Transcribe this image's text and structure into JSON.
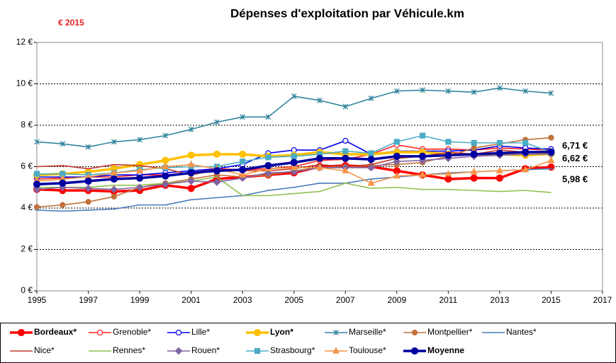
{
  "chart_data": {
    "type": "line",
    "title": "Dépenses d'exploitation par Véhicule.km",
    "subtitle": "€ 2015",
    "x": [
      1995,
      1996,
      1997,
      1998,
      1999,
      2000,
      2001,
      2002,
      2003,
      2004,
      2005,
      2006,
      2007,
      2008,
      2009,
      2010,
      2011,
      2012,
      2013,
      2014,
      2015
    ],
    "xlim": [
      1995,
      2017
    ],
    "xticks": [
      1995,
      1997,
      1999,
      2001,
      2003,
      2005,
      2007,
      2009,
      2011,
      2013,
      2015,
      2017
    ],
    "ylim": [
      0,
      12
    ],
    "yticks": [
      {
        "value": 0,
        "label": "0 €"
      },
      {
        "value": 2,
        "label": "2 €"
      },
      {
        "value": 4,
        "label": "4 €"
      },
      {
        "value": 6,
        "label": "6 €"
      },
      {
        "value": 8,
        "label": "8 €"
      },
      {
        "value": 10,
        "label": "10 €"
      },
      {
        "value": 12,
        "label": "12 €"
      }
    ],
    "grid": true,
    "series": [
      {
        "name": "Bordeaux*",
        "color": "#ff0000",
        "marker": "circle",
        "emphasis": true,
        "values": [
          4.9,
          4.85,
          4.85,
          4.8,
          4.85,
          5.1,
          4.95,
          5.4,
          5.5,
          5.6,
          5.7,
          6.0,
          6.05,
          6.0,
          5.8,
          5.6,
          5.4,
          5.45,
          5.45,
          5.9,
          5.98
        ]
      },
      {
        "name": "Grenoble*",
        "color": "#ff2020",
        "marker": "open-circle",
        "emphasis": false,
        "values": [
          5.4,
          5.45,
          5.5,
          5.5,
          5.6,
          5.6,
          5.7,
          5.9,
          5.85,
          5.9,
          6.0,
          6.3,
          6.35,
          6.6,
          7.05,
          6.85,
          6.85,
          6.8,
          6.9,
          6.85,
          6.8
        ]
      },
      {
        "name": "Lille*",
        "color": "#0000ee",
        "marker": "open-circle",
        "emphasis": false,
        "values": [
          5.5,
          5.5,
          5.5,
          5.6,
          5.6,
          5.7,
          5.8,
          5.9,
          6.1,
          6.65,
          6.8,
          6.8,
          7.25,
          6.6,
          6.75,
          6.75,
          6.75,
          6.8,
          7.0,
          6.9,
          6.85
        ]
      },
      {
        "name": "Lyon*",
        "color": "#ffc000",
        "marker": "circle",
        "emphasis": true,
        "values": [
          5.6,
          5.65,
          5.75,
          5.9,
          6.1,
          6.3,
          6.55,
          6.6,
          6.6,
          6.5,
          6.55,
          6.7,
          6.6,
          6.6,
          6.7,
          6.7,
          6.6,
          6.6,
          6.6,
          6.55,
          6.62
        ]
      },
      {
        "name": "Marseille*",
        "color": "#31859c",
        "marker": "star",
        "emphasis": false,
        "values": [
          7.2,
          7.1,
          6.95,
          7.2,
          7.3,
          7.5,
          7.8,
          8.15,
          8.4,
          8.4,
          9.4,
          9.2,
          8.9,
          9.3,
          9.65,
          9.7,
          9.65,
          9.6,
          9.8,
          9.65,
          9.55
        ]
      },
      {
        "name": "Montpellier*",
        "color": "#c0703a",
        "marker": "circle",
        "emphasis": false,
        "values": [
          4.05,
          4.15,
          4.3,
          4.55,
          5.0,
          5.2,
          5.4,
          5.6,
          5.5,
          5.6,
          5.8,
          5.95,
          6.0,
          6.05,
          6.1,
          6.2,
          6.5,
          6.9,
          7.1,
          7.3,
          7.4
        ]
      },
      {
        "name": "Nantes*",
        "color": "#4a7ebb",
        "marker": "dash",
        "emphasis": false,
        "values": [
          3.9,
          3.85,
          3.9,
          3.95,
          4.15,
          4.15,
          4.4,
          4.5,
          4.6,
          4.85,
          5.0,
          5.2,
          5.2,
          5.4,
          5.5,
          5.6,
          5.7,
          5.75,
          5.8,
          5.85,
          5.9
        ]
      },
      {
        "name": "Nice*",
        "color": "#c0392b",
        "marker": "none",
        "emphasis": false,
        "values": [
          6.0,
          6.05,
          5.9,
          6.1,
          6.05,
          5.9,
          5.6,
          5.85,
          5.8,
          5.8,
          5.9,
          6.1,
          6.0,
          6.1,
          6.4,
          6.5,
          6.7,
          6.6,
          6.8,
          6.7,
          6.75
        ]
      },
      {
        "name": "Rennes*",
        "color": "#92c050",
        "marker": "none",
        "emphasis": false,
        "values": [
          5.0,
          5.0,
          5.0,
          5.1,
          5.1,
          5.2,
          5.3,
          5.5,
          4.6,
          4.6,
          4.7,
          4.8,
          5.2,
          4.95,
          5.0,
          4.9,
          4.9,
          4.85,
          4.8,
          4.85,
          4.75
        ]
      },
      {
        "name": "Rouen*",
        "color": "#8064a2",
        "marker": "diamond",
        "emphasis": false,
        "values": [
          4.9,
          5.0,
          4.95,
          4.9,
          5.0,
          5.15,
          5.3,
          5.25,
          5.45,
          5.7,
          5.75,
          5.95,
          5.95,
          5.95,
          6.25,
          6.3,
          6.4,
          6.5,
          6.55,
          6.6,
          6.6
        ]
      },
      {
        "name": "Strasbourg*",
        "color": "#4bacc6",
        "marker": "square",
        "emphasis": false,
        "values": [
          5.65,
          5.65,
          5.6,
          5.7,
          5.85,
          5.95,
          6.0,
          6.0,
          6.25,
          6.45,
          6.5,
          6.6,
          6.75,
          6.65,
          7.2,
          7.5,
          7.2,
          7.15,
          7.15,
          7.15,
          6.7
        ]
      },
      {
        "name": "Toulouse*",
        "color": "#f79646",
        "marker": "triangle",
        "emphasis": false,
        "values": [
          5.3,
          5.4,
          5.5,
          5.7,
          5.8,
          6.0,
          6.1,
          5.9,
          5.6,
          5.9,
          5.95,
          5.95,
          5.8,
          5.2,
          5.55,
          5.6,
          5.65,
          5.75,
          5.8,
          5.85,
          6.3
        ]
      },
      {
        "name": "Moyenne",
        "color": "#0000a0",
        "marker": "circle",
        "emphasis": true,
        "values": [
          5.15,
          5.2,
          5.3,
          5.4,
          5.45,
          5.55,
          5.7,
          5.8,
          5.85,
          6.05,
          6.2,
          6.4,
          6.4,
          6.35,
          6.5,
          6.5,
          6.55,
          6.6,
          6.65,
          6.7,
          6.71
        ]
      }
    ],
    "annotations": [
      {
        "label": "6,71 €",
        "value": 6.71,
        "color": "#0000ee"
      },
      {
        "label": "6,62 €",
        "value": 6.62,
        "color": "#000000"
      },
      {
        "label": "5,98 €",
        "value": 5.98,
        "color": "#ff0000"
      }
    ]
  }
}
